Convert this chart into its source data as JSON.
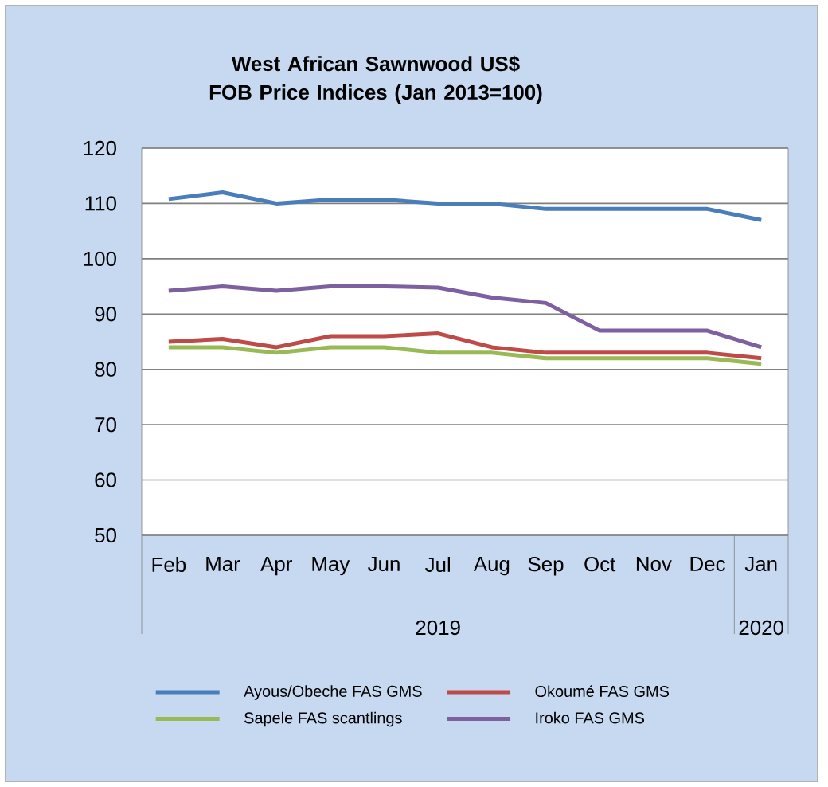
{
  "chart_data": {
    "type": "line",
    "title": "West African Sawnwood US$ FOB Price Indices (Jan 2013=100)",
    "categories": [
      "Feb",
      "Mar",
      "Apr",
      "May",
      "Jun",
      "Jul",
      "Aug",
      "Sep",
      "Oct",
      "Nov",
      "Dec",
      "Jan"
    ],
    "annotations": [
      "2019",
      "2020"
    ],
    "series": [
      {
        "name": "Ayous/Obeche  FAS GMS",
        "color": "#4a7ebb",
        "values": [
          110.8,
          112,
          110,
          110.7,
          110.7,
          110,
          110,
          109,
          109,
          109,
          109,
          107
        ]
      },
      {
        "name": "Okoumé  FAS GMS",
        "color": "#be4b48",
        "values": [
          85,
          85.5,
          84,
          86,
          86,
          86.5,
          84,
          83,
          83,
          83,
          83,
          82
        ]
      },
      {
        "name": "Sapele FAS scantlings",
        "color": "#98b954",
        "values": [
          84,
          84,
          83,
          84,
          84,
          83,
          83,
          82,
          82,
          82,
          82,
          81
        ]
      },
      {
        "name": "Iroko FAS GMS",
        "color": "#7d60a0",
        "values": [
          94.2,
          95,
          94.2,
          95,
          95,
          94.8,
          93,
          92,
          87,
          87,
          87,
          84
        ]
      }
    ],
    "ylim": [
      50,
      120
    ],
    "yticks": [
      50,
      60,
      70,
      80,
      90,
      100,
      110,
      120
    ],
    "grid": "y",
    "legend": "bottom",
    "marker": "none",
    "line_style": "solid"
  }
}
